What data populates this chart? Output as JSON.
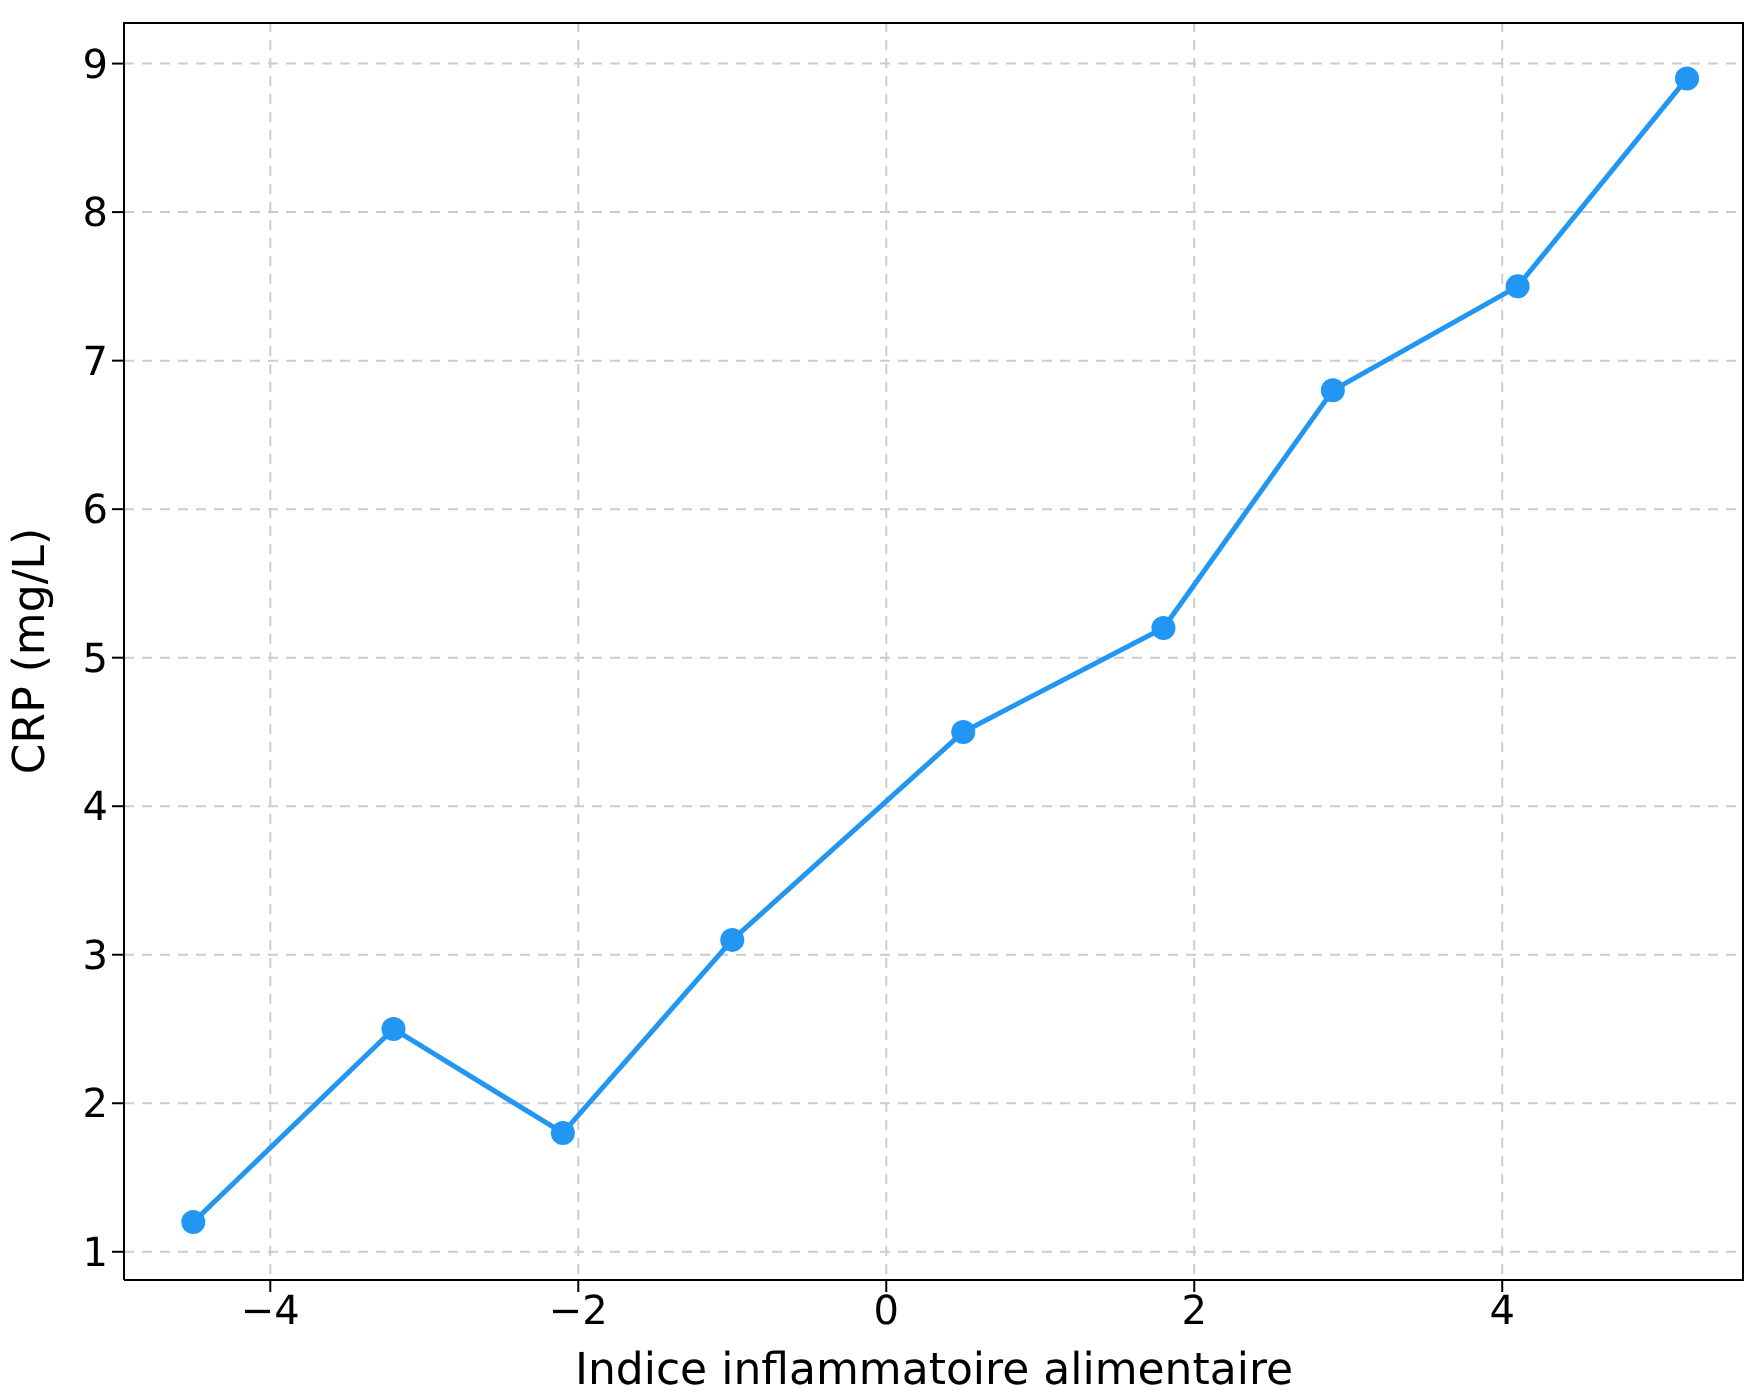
{
  "chart_data": {
    "type": "line",
    "xlabel": "Indice inflammatoire alimentaire",
    "ylabel": "CRP (mg/L)",
    "x": [
      -4.5,
      -3.2,
      -2.1,
      -1.0,
      0.5,
      1.8,
      2.9,
      4.1,
      5.2
    ],
    "series": [
      {
        "color": "#2196f3",
        "values": [
          1.2,
          2.5,
          1.8,
          3.1,
          4.5,
          5.2,
          6.8,
          7.5,
          8.9
        ]
      }
    ],
    "xlim": [
      -4.95,
      5.57
    ],
    "ylim": [
      0.81,
      9.28
    ],
    "xticks": [
      {
        "value": -4,
        "label": "−4"
      },
      {
        "value": -2,
        "label": "−2"
      },
      0,
      2,
      4
    ],
    "yticks": [
      1,
      2,
      3,
      4,
      5,
      6,
      7,
      8,
      9
    ],
    "grid": true,
    "marker": "circle",
    "line_style": "solid"
  }
}
